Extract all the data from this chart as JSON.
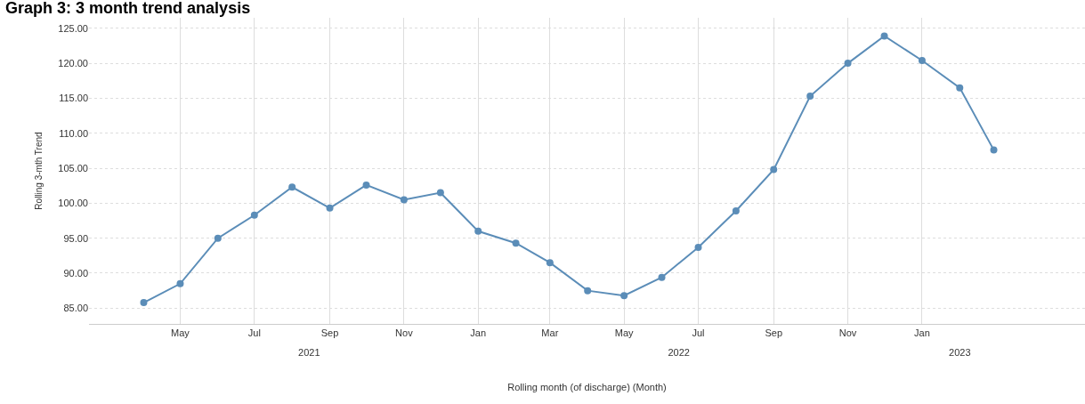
{
  "chart_data": {
    "type": "line",
    "title": "Graph 3: 3 month trend analysis",
    "xlabel": "Rolling month (of discharge) (Month)",
    "ylabel": "Rolling 3-mth Trend",
    "x": [
      "2021-04",
      "2021-05",
      "2021-06",
      "2021-07",
      "2021-08",
      "2021-09",
      "2021-10",
      "2021-11",
      "2021-12",
      "2022-01",
      "2022-02",
      "2022-03",
      "2022-04",
      "2022-05",
      "2022-06",
      "2022-07",
      "2022-08",
      "2022-09",
      "2022-10",
      "2022-11",
      "2022-12",
      "2023-01",
      "2023-02",
      "2023-03"
    ],
    "series": [
      {
        "color": "#5b8db8",
        "values": [
          85.8,
          88.5,
          95.0,
          98.3,
          102.3,
          99.3,
          102.6,
          100.5,
          101.5,
          96.0,
          94.3,
          91.5,
          87.5,
          86.8,
          89.4,
          93.7,
          98.9,
          104.8,
          115.3,
          120.0,
          123.9,
          120.4,
          116.5,
          107.6
        ]
      }
    ],
    "xlim": [
      "2021-02-15",
      "2023-05-15"
    ],
    "xticks": [
      {
        "value": "2021-05",
        "label": "May"
      },
      {
        "value": "2021-07",
        "label": "Jul"
      },
      {
        "value": "2021-09",
        "label": "Sep"
      },
      {
        "value": "2021-11",
        "label": "Nov"
      },
      {
        "value": "2022-01",
        "label": "Jan"
      },
      {
        "value": "2022-03",
        "label": "Mar"
      },
      {
        "value": "2022-05",
        "label": "May"
      },
      {
        "value": "2022-07",
        "label": "Jul"
      },
      {
        "value": "2022-09",
        "label": "Sep"
      },
      {
        "value": "2022-11",
        "label": "Nov"
      },
      {
        "value": "2023-01",
        "label": "Jan"
      }
    ],
    "x2lim": [
      "2021-02-15",
      "2023-05-15"
    ],
    "x2ticks": [
      {
        "value": "2021-08-15",
        "label": "2021"
      },
      {
        "value": "2022-06-15",
        "label": "2022"
      },
      {
        "value": "2023-02-01",
        "label": "2023"
      }
    ],
    "ylim": [
      82.75,
      126.5
    ],
    "yticks": [
      {
        "value": 85,
        "label": "85.00"
      },
      {
        "value": 90,
        "label": "90.00"
      },
      {
        "value": 95,
        "label": "95.00"
      },
      {
        "value": 100,
        "label": "100.00"
      },
      {
        "value": 105,
        "label": "105.00"
      },
      {
        "value": 110,
        "label": "110.00"
      },
      {
        "value": 115,
        "label": "115.00"
      },
      {
        "value": 120,
        "label": "120.00"
      },
      {
        "value": 125,
        "label": "125.00"
      }
    ],
    "grid": true,
    "marker": "circle",
    "line_style": "solid"
  }
}
